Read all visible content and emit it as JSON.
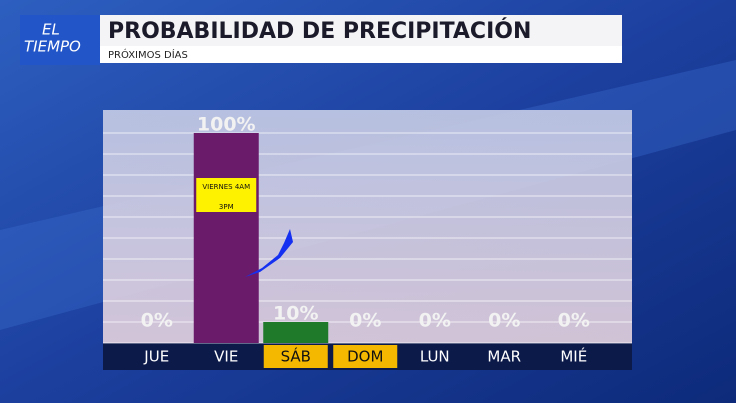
{
  "header": {
    "logo_line1": "EL",
    "logo_line2": "TIEMPO",
    "title": "PROBABILIDAD DE PRECIPITACIÓN",
    "subtitle": "PRÓXIMOS DÍAS"
  },
  "chart_data": {
    "type": "bar",
    "categories": [
      "JUE",
      "VIE",
      "SÁB",
      "DOM",
      "LUN",
      "MAR",
      "MIÉ"
    ],
    "values": [
      0,
      100,
      10,
      0,
      0,
      0,
      0
    ],
    "value_labels": [
      "0%",
      "100%",
      "10%",
      "0%",
      "0%",
      "0%",
      "0%"
    ],
    "colors": [
      "#6a1b6a",
      "#6a1b6a",
      "#1f7a2a",
      "#1f7a2a",
      "#1f7a2a",
      "#1f7a2a",
      "#1f7a2a"
    ],
    "category_highlight": [
      false,
      false,
      true,
      true,
      false,
      false,
      false
    ],
    "ylim": [
      0,
      100
    ],
    "yticks": [
      0,
      10,
      20,
      30,
      40,
      50,
      60,
      70,
      80,
      90,
      100
    ],
    "grid": true,
    "annotation": {
      "line1": "VIERNES 4AM",
      "line2": "3PM"
    }
  }
}
